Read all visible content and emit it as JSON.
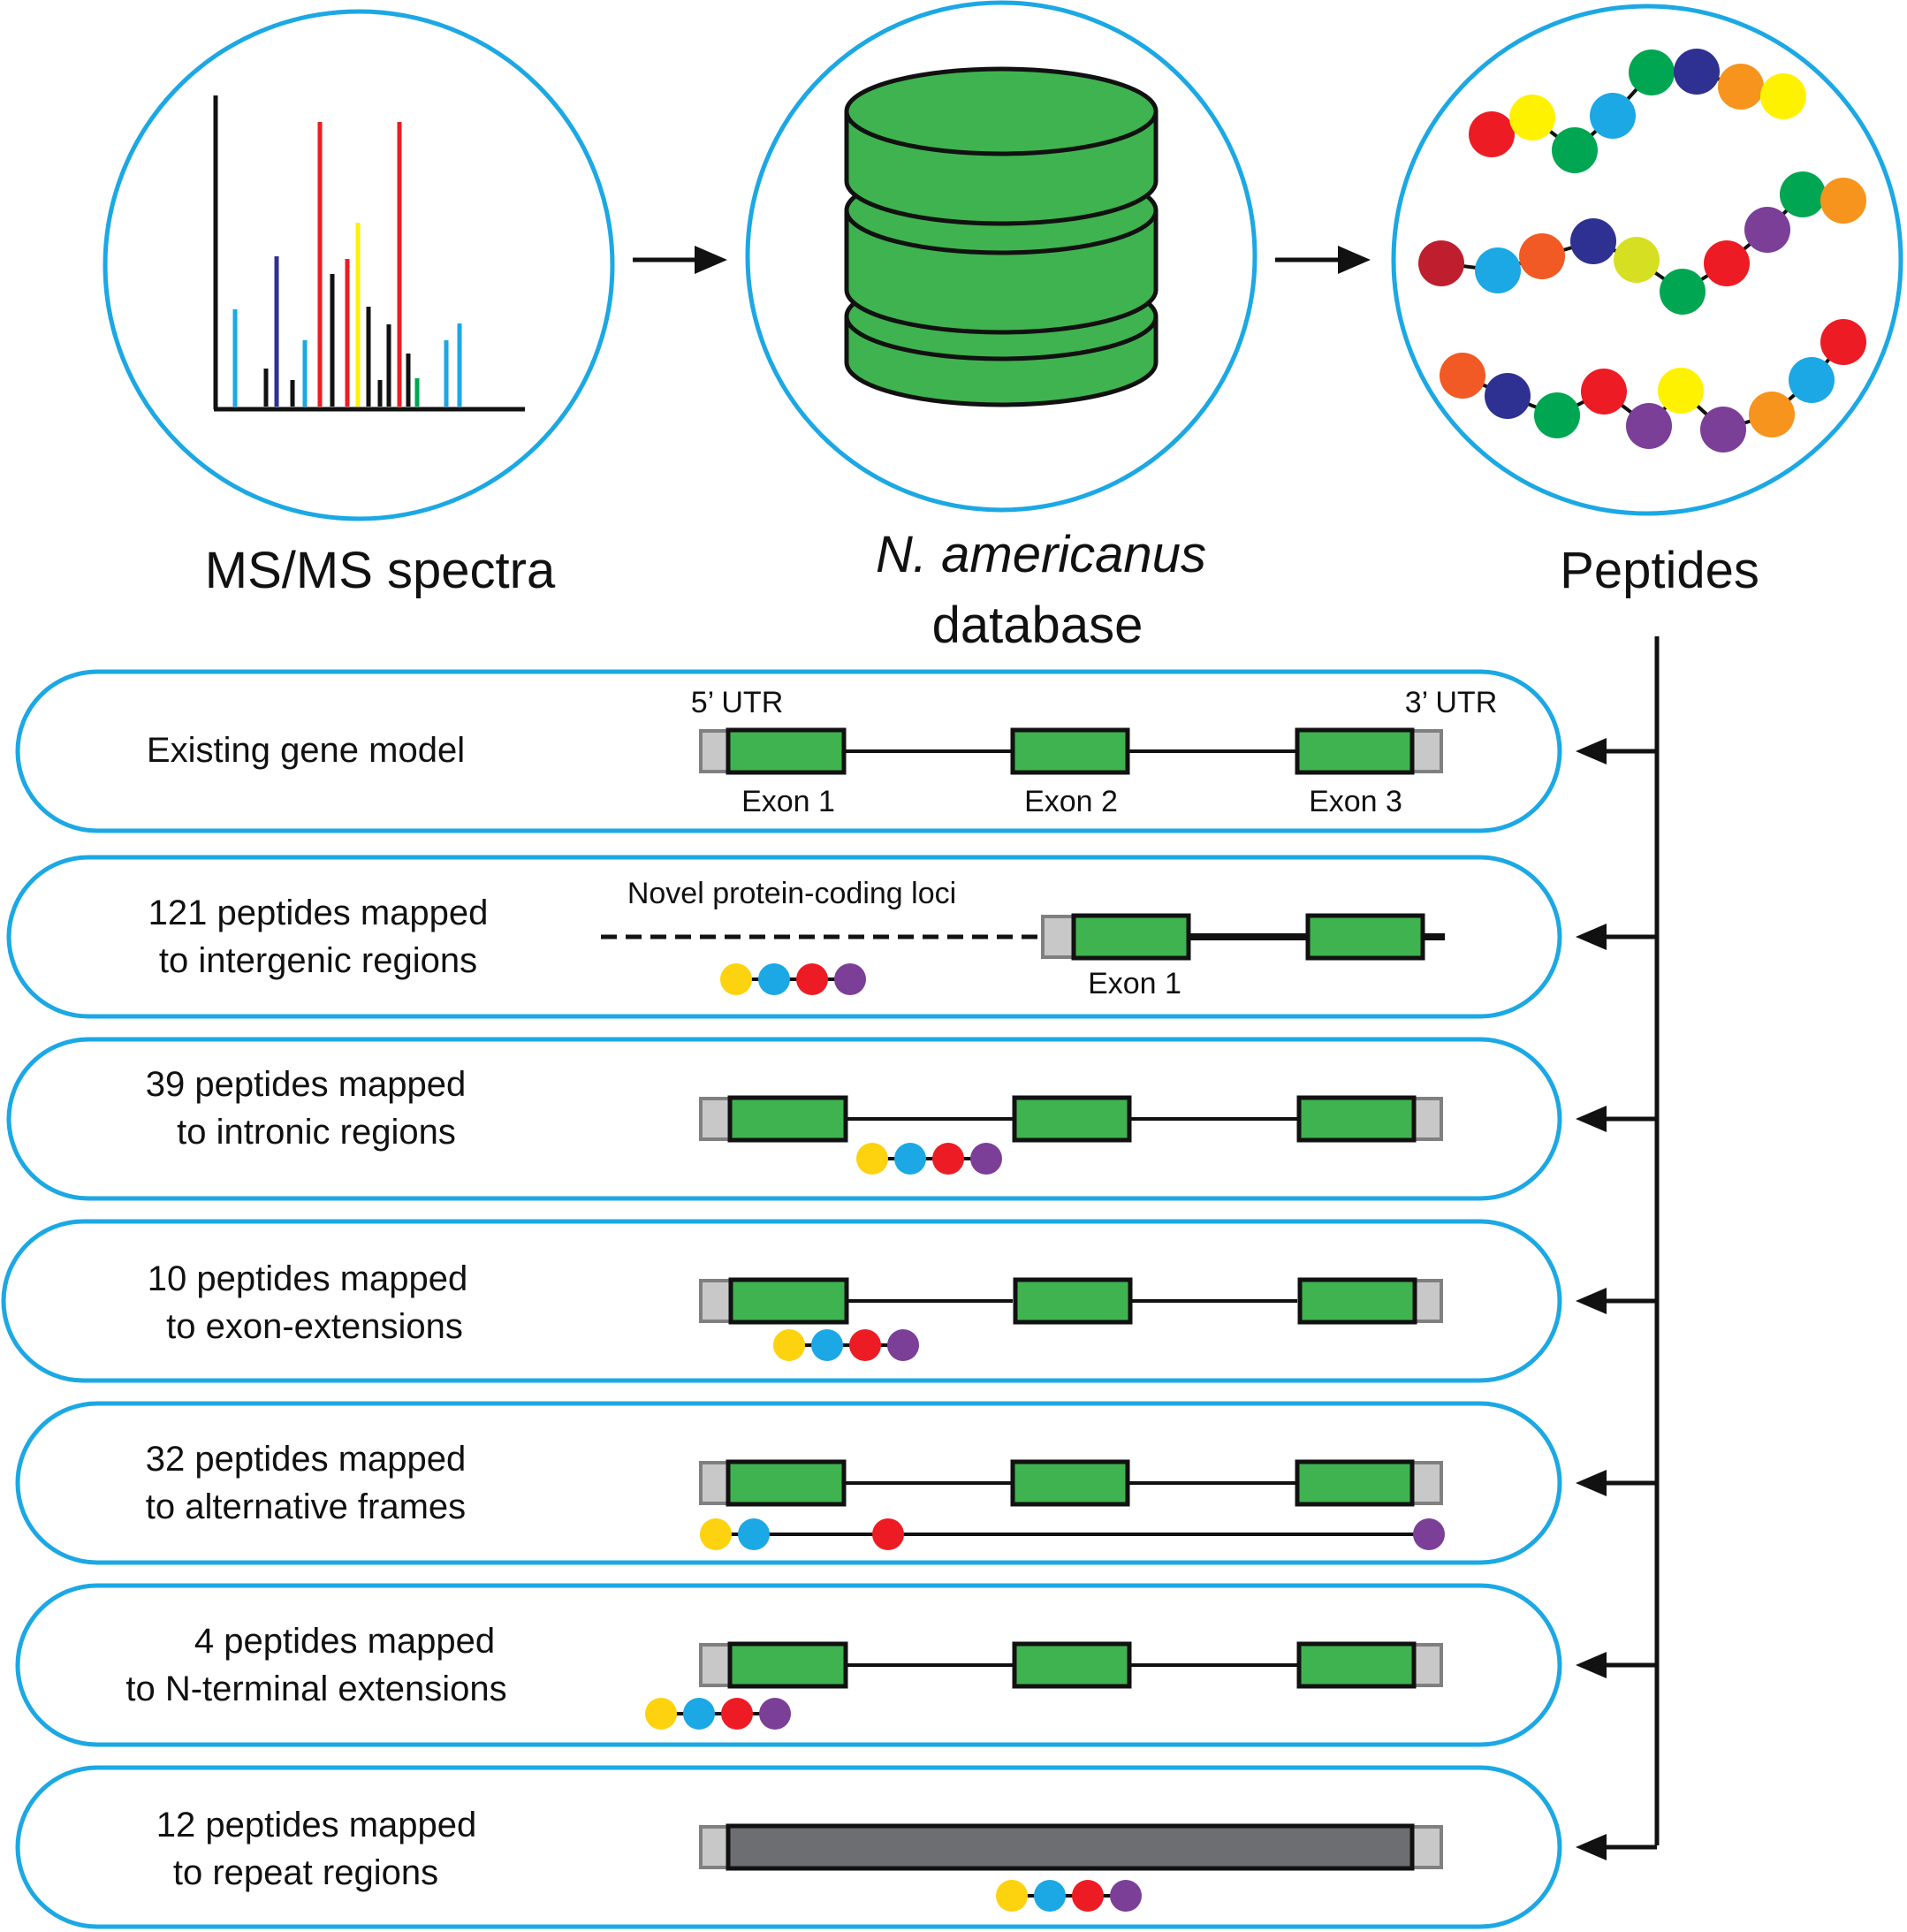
{
  "top": {
    "spectra_label": "MS/MS spectra",
    "database_label_line1": "N. americanus",
    "database_label_line2": "database",
    "peptides_label": "Peptides"
  },
  "gene_model": {
    "utr5": "5’ UTR",
    "utr3": "3’ UTR",
    "exon1": "Exon 1",
    "exon2": "Exon 2",
    "exon3": "Exon 3",
    "novel_loci": "Novel protein-coding loci",
    "novel_exon1": "Exon 1"
  },
  "rows": [
    {
      "line1": "Existing gene model",
      "line2": ""
    },
    {
      "line1": "121 peptides mapped",
      "line2": "to intergenic regions"
    },
    {
      "line1": "39 peptides mapped",
      "line2": "to intronic regions"
    },
    {
      "line1": "10 peptides mapped",
      "line2": "to exon-extensions"
    },
    {
      "line1": "32 peptides mapped",
      "line2": "to alternative frames"
    },
    {
      "line1": "4 peptides mapped",
      "line2": "to N-terminal extensions"
    },
    {
      "line1": "12 peptides mapped",
      "line2": "to repeat regions"
    }
  ],
  "colors": {
    "circle_border": "#1BA8E4",
    "exon_green": "#3FB34F",
    "utr_gray": "#C8C8C8",
    "repeat_gray": "#6D6E71",
    "peptide_yellow": "#FDD20E",
    "peptide_blue": "#1BA8E4",
    "peptide_red": "#ED1C24",
    "peptide_purple": "#7B3F98"
  }
}
